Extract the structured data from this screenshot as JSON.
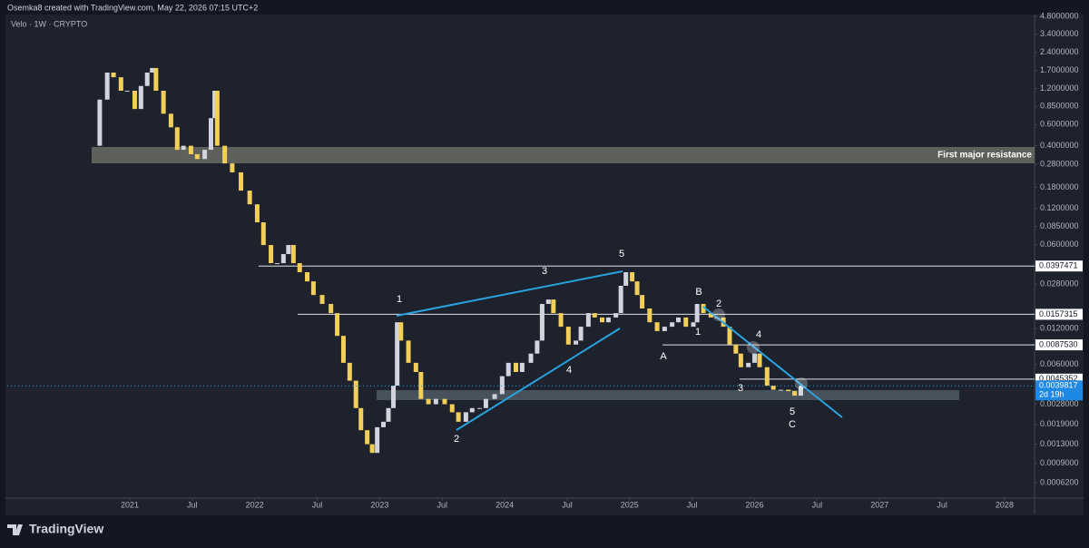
{
  "header": "Osemka8 created with TradingView.com, May 22, 2026 07:15 UTC+2",
  "symbol": "Velo · 1W · CRYPTO",
  "footer": "TradingView",
  "chart_data": {
    "type": "candlestick",
    "log": true,
    "xlim": [
      2020.02,
      2028.24
    ],
    "ylim": [
      0.00047,
      5.71
    ],
    "xticks": [
      {
        "value": 2021,
        "label": "2021"
      },
      {
        "value": 2021.5,
        "label": "Jul"
      },
      {
        "value": 2022,
        "label": "2022"
      },
      {
        "value": 2022.5,
        "label": "Jul"
      },
      {
        "value": 2023,
        "label": "2023"
      },
      {
        "value": 2023.5,
        "label": "Jul"
      },
      {
        "value": 2024,
        "label": "2024"
      },
      {
        "value": 2024.5,
        "label": "Jul"
      },
      {
        "value": 2025,
        "label": "2025"
      },
      {
        "value": 2025.5,
        "label": "Jul"
      },
      {
        "value": 2026,
        "label": "2026"
      },
      {
        "value": 2026.5,
        "label": "Jul"
      },
      {
        "value": 2027,
        "label": "2027"
      },
      {
        "value": 2027.5,
        "label": "Jul"
      },
      {
        "value": 2028,
        "label": "2028"
      }
    ],
    "yticks": [
      {
        "value": 4.8,
        "label": "4.8000000"
      },
      {
        "value": 3.4,
        "label": "3.4000000"
      },
      {
        "value": 2.4,
        "label": "2.4000000"
      },
      {
        "value": 1.7,
        "label": "1.7000000"
      },
      {
        "value": 1.2,
        "label": "1.2000000"
      },
      {
        "value": 0.85,
        "label": "0.8500000"
      },
      {
        "value": 0.6,
        "label": "0.6000000"
      },
      {
        "value": 0.4,
        "label": "0.4000000"
      },
      {
        "value": 0.28,
        "label": "0.2800000"
      },
      {
        "value": 0.18,
        "label": "0.1800000"
      },
      {
        "value": 0.12,
        "label": "0.1200000"
      },
      {
        "value": 0.085,
        "label": "0.0850000"
      },
      {
        "value": 0.06,
        "label": "0.0600000"
      },
      {
        "value": 0.028,
        "label": "0.0280000"
      },
      {
        "value": 0.012,
        "label": "0.0120000"
      },
      {
        "value": 0.006,
        "label": "0.0060000"
      },
      {
        "value": 0.0028,
        "label": "0.0028000"
      },
      {
        "value": 0.0019,
        "label": "0.0019000"
      },
      {
        "value": 0.0013,
        "label": "0.0013000"
      },
      {
        "value": 0.0009,
        "label": "0.0009000"
      },
      {
        "value": 0.00062,
        "label": "0.0006200"
      }
    ],
    "price_levels": [
      {
        "value": 0.0397471,
        "label": "0.0397471"
      },
      {
        "value": 0.0157315,
        "label": "0.0157315"
      },
      {
        "value": 0.008753,
        "label": "0.0087530"
      },
      {
        "value": 0.0045352,
        "label": "0.0045352"
      }
    ],
    "current_price": {
      "value": 0.0039817,
      "label": "0.0039817",
      "countdown": "2d 19h"
    },
    "zone_label": "First major resistance",
    "annotations": [
      "1",
      "3",
      "5",
      "4",
      "2",
      "B",
      "2",
      "1",
      "A",
      "4",
      "3",
      "5",
      "C"
    ],
    "up_color": "#d1d4dc",
    "down_color": "#f2cf5b",
    "trend_color": "#29a3e0",
    "series": [
      {
        "name": "Velo",
        "x": [
          2020.71,
          2020.76,
          2020.82,
          2020.87,
          2020.93,
          2020.98,
          2021.04,
          2021.09,
          2021.14,
          2021.18,
          2021.21,
          2021.27,
          2021.33,
          2021.38,
          2021.43,
          2021.49,
          2021.54,
          2021.6,
          2021.65,
          2021.68,
          2021.7,
          2021.76,
          2021.82,
          2021.89,
          2021.96,
          2022.02,
          2022.07,
          2022.13,
          2022.18,
          2022.23,
          2022.27,
          2022.31,
          2022.36,
          2022.42,
          2022.47,
          2022.54,
          2022.61,
          2022.66,
          2022.71,
          2022.76,
          2022.81,
          2022.85,
          2022.9,
          2022.94,
          2022.98,
          2023.03,
          2023.07,
          2023.11,
          2023.14,
          2023.17,
          2023.23,
          2023.29,
          2023.33,
          2023.39,
          2023.45,
          2023.52,
          2023.58,
          2023.63,
          2023.69,
          2023.74,
          2023.8,
          2023.85,
          2023.92,
          2023.98,
          2024.03,
          2024.09,
          2024.14,
          2024.21,
          2024.26,
          2024.3,
          2024.35,
          2024.39,
          2024.45,
          2024.51,
          2024.57,
          2024.61,
          2024.67,
          2024.72,
          2024.78,
          2024.83,
          2024.89,
          2024.93,
          2024.97,
          2025.02,
          2025.06,
          2025.1,
          2025.16,
          2025.22,
          2025.28,
          2025.34,
          2025.39,
          2025.45,
          2025.51,
          2025.54,
          2025.59,
          2025.65,
          2025.7,
          2025.75,
          2025.8,
          2025.85,
          2025.89,
          2025.95,
          2026.0,
          2026.04,
          2026.1,
          2026.15,
          2026.21,
          2026.27,
          2026.32,
          2026.37
        ],
        "values": [
          0.4,
          0.97,
          1.63,
          1.49,
          1.15,
          1.15,
          0.81,
          1.26,
          1.63,
          1.78,
          1.15,
          0.74,
          0.57,
          0.37,
          0.4,
          0.34,
          0.31,
          0.37,
          0.68,
          1.15,
          0.4,
          0.285,
          0.24,
          0.169,
          0.13,
          0.092,
          0.0595,
          0.042,
          0.042,
          0.05,
          0.0595,
          0.042,
          0.0353,
          0.0296,
          0.0228,
          0.0192,
          0.0161,
          0.0104,
          0.0062,
          0.0044,
          0.0026,
          0.0017,
          0.0013,
          0.0011,
          0.0018,
          0.002,
          0.0026,
          0.004,
          0.0135,
          0.0095,
          0.0062,
          0.0052,
          0.0031,
          0.0028,
          0.0031,
          0.0028,
          0.0024,
          0.002,
          0.0024,
          0.0026,
          0.0026,
          0.0031,
          0.0034,
          0.0048,
          0.0062,
          0.0052,
          0.0062,
          0.0074,
          0.0095,
          0.0192,
          0.0209,
          0.0161,
          0.0124,
          0.0088,
          0.0095,
          0.0124,
          0.0161,
          0.0148,
          0.0135,
          0.0148,
          0.0161,
          0.0272,
          0.0353,
          0.0296,
          0.0228,
          0.0176,
          0.0135,
          0.0114,
          0.0124,
          0.0135,
          0.0148,
          0.0124,
          0.0135,
          0.0192,
          0.0161,
          0.0148,
          0.0148,
          0.0124,
          0.0088,
          0.0074,
          0.0057,
          0.0062,
          0.0074,
          0.0057,
          0.004,
          0.0037,
          0.0037,
          0.0036,
          0.0033,
          0.004
        ]
      }
    ]
  }
}
